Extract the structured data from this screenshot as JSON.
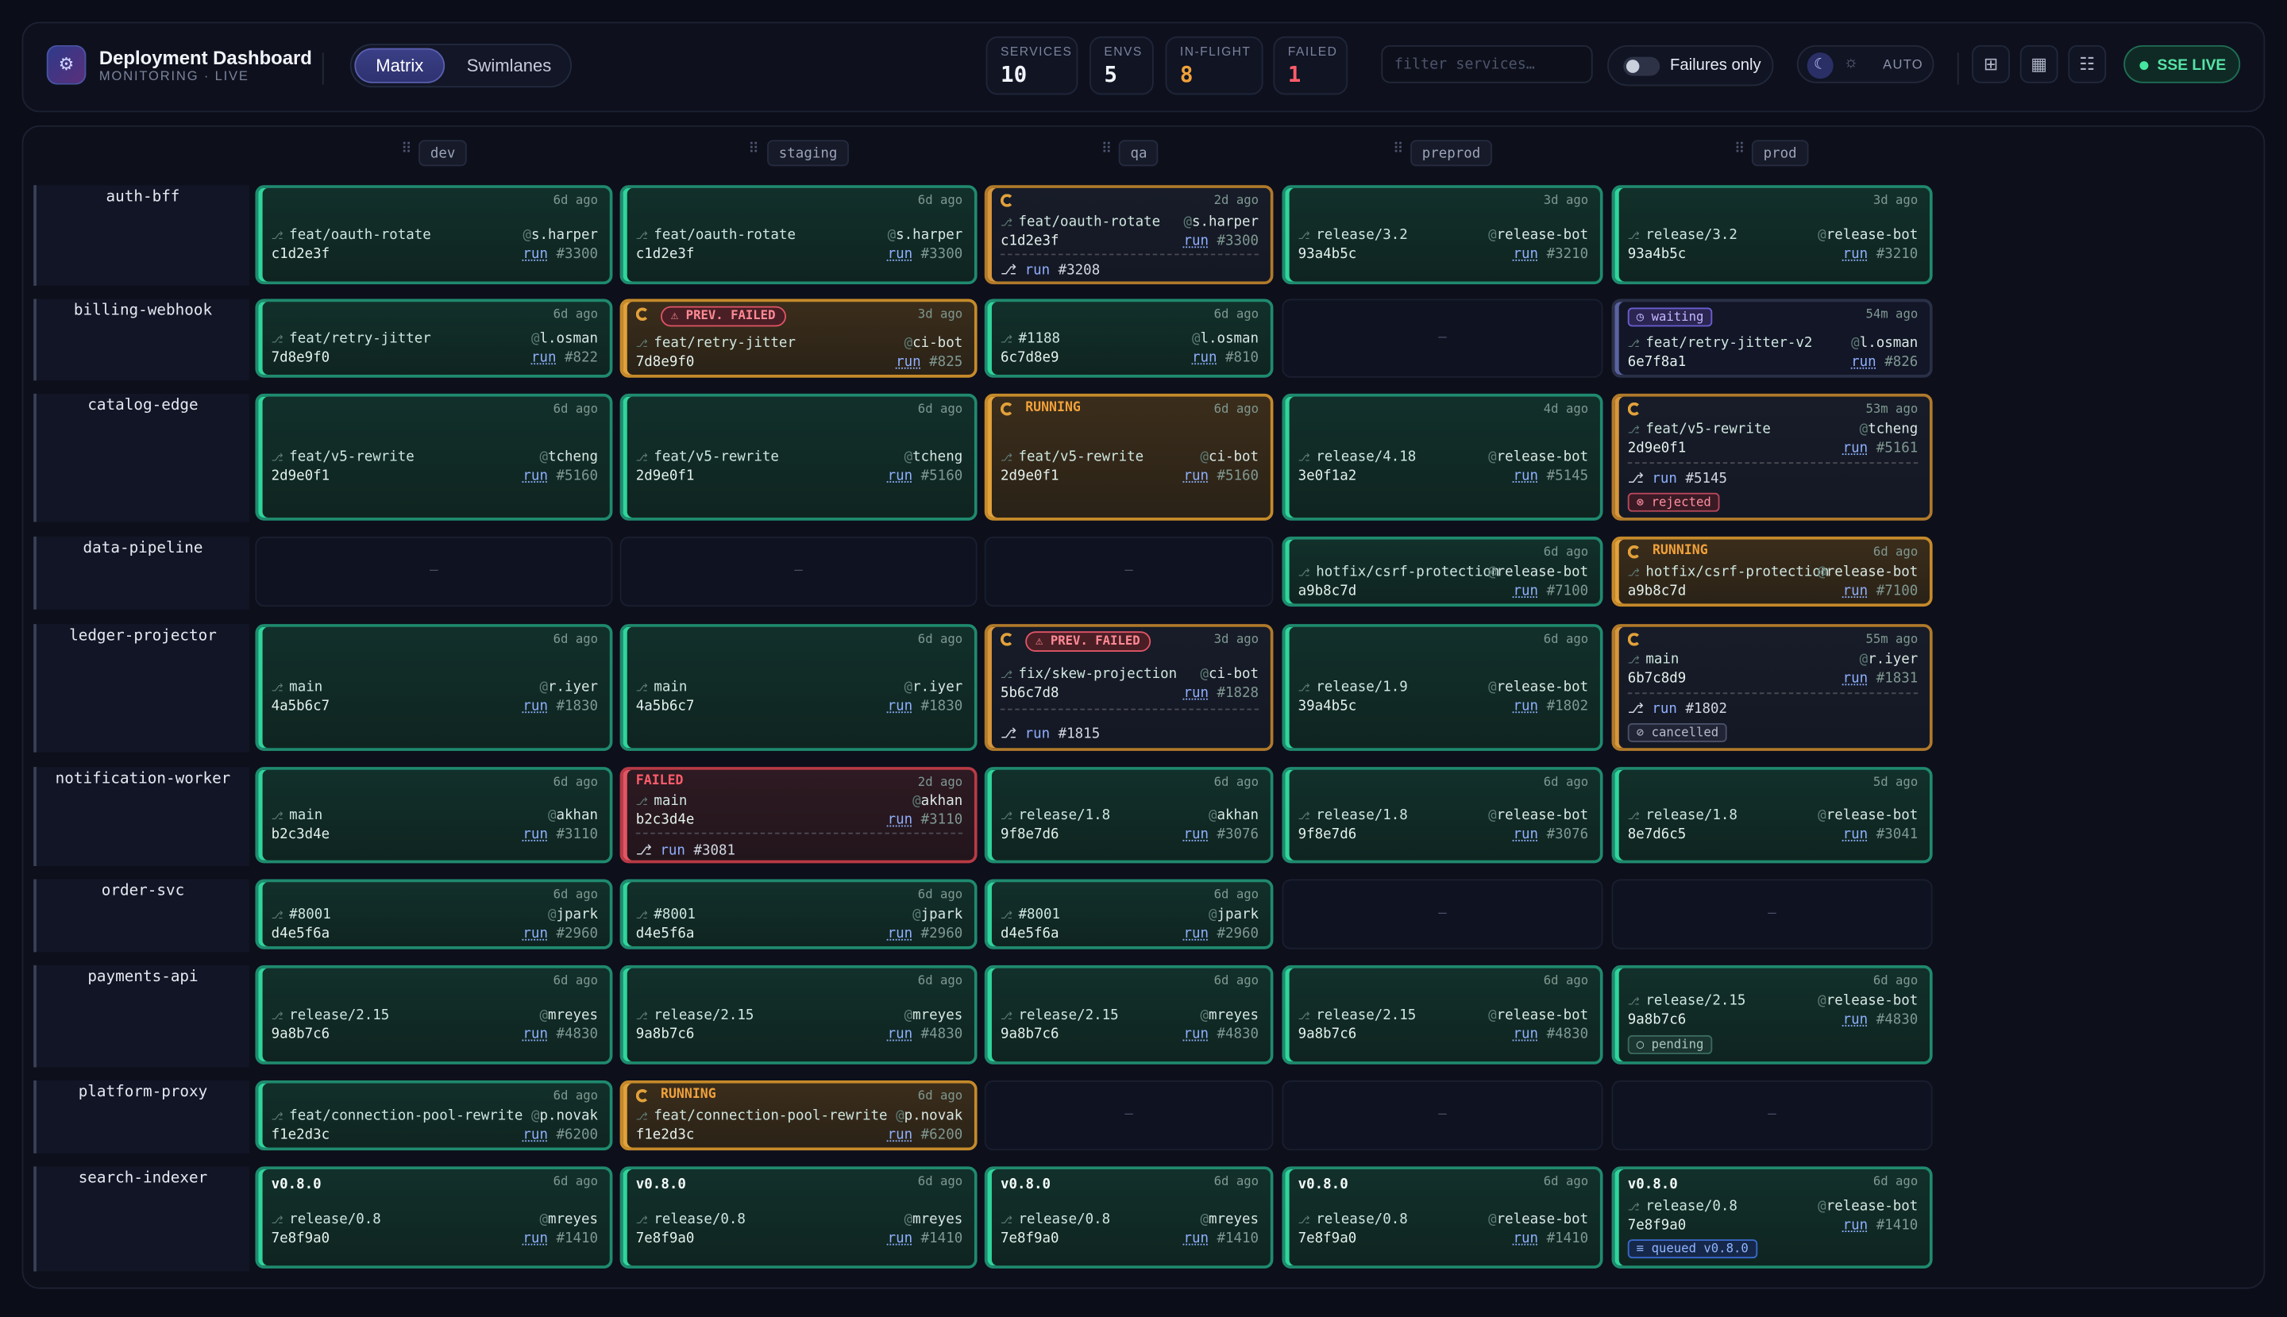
{
  "app": {
    "title": "Deployment Dashboard",
    "subtitle": "MONITORING · LIVE",
    "logo_icon": "deploy-logo-icon"
  },
  "view": {
    "matrix_label": "Matrix",
    "swimlanes_label": "Swimlanes",
    "active": "Matrix"
  },
  "stats": [
    {
      "label": "SERVICES",
      "value": "10",
      "color": "#f1f3fa"
    },
    {
      "label": "ENVS",
      "value": "5",
      "color": "#f1f3fa"
    },
    {
      "label": "IN-FLIGHT",
      "value": "8",
      "color": "#f0a13a"
    },
    {
      "label": "FAILED",
      "value": "1",
      "color": "#ff5c6a"
    }
  ],
  "filter": {
    "placeholder": "filter services…"
  },
  "toggle": {
    "label": "Failures only",
    "on": false
  },
  "theme": {
    "auto_label": "AUTO"
  },
  "live": {
    "label": "SSE LIVE",
    "color": "#46e6a0"
  },
  "environments": [
    "dev",
    "staging",
    "qa",
    "preprod",
    "prod"
  ],
  "services": [
    "auth-bff",
    "billing-webhook",
    "catalog-edge",
    "data-pipeline",
    "ledger-projector",
    "notification-worker",
    "order-svc",
    "payments-api",
    "platform-proxy",
    "search-indexer"
  ],
  "empty_symbol": "—",
  "cells": {
    "auth_dev": {
      "ago": "6d ago",
      "branch": "feat/oauth-rotate",
      "sha": "c1d2e3f",
      "who": "s.harper",
      "run": "run",
      "num": "#3300"
    },
    "auth_staging": {
      "ago": "6d ago",
      "branch": "feat/oauth-rotate",
      "sha": "c1d2e3f",
      "who": "s.harper",
      "run": "run",
      "num": "#3300"
    },
    "auth_qa": {
      "ago": "2d ago",
      "branch": "feat/oauth-rotate",
      "sha": "c1d2e3f",
      "who": "s.harper",
      "run": "run",
      "num": "#3300",
      "prev_run": "run",
      "prev_num": "#3208"
    },
    "auth_preprod": {
      "ago": "3d ago",
      "branch": "release/3.2",
      "sha": "93a4b5c",
      "who": "release-bot",
      "run": "run",
      "num": "#3210"
    },
    "auth_prod": {
      "ago": "3d ago",
      "branch": "release/3.2",
      "sha": "93a4b5c",
      "who": "release-bot",
      "run": "run",
      "num": "#3210"
    },
    "billing_dev": {
      "ago": "6d ago",
      "branch": "feat/retry-jitter",
      "sha": "7d8e9f0",
      "who": "l.osman",
      "run": "run",
      "num": "#822"
    },
    "billing_staging": {
      "ago": "3d ago",
      "badge": "⚠ PREV. FAILED",
      "branch": "feat/retry-jitter",
      "sha": "7d8e9f0",
      "who": "ci-bot",
      "run": "run",
      "num": "#825"
    },
    "billing_qa": {
      "ago": "6d ago",
      "branch": "#1188",
      "sha": "6c7d8e9",
      "who": "l.osman",
      "run": "run",
      "num": "#810"
    },
    "billing_prod": {
      "ago": "54m ago",
      "badge": "◷ waiting",
      "branch": "feat/retry-jitter-v2",
      "sha": "6e7f8a1",
      "who": "l.osman",
      "run": "run",
      "num": "#826"
    },
    "catalog_dev": {
      "ago": "6d ago",
      "branch": "feat/v5-rewrite",
      "sha": "2d9e0f1",
      "who": "tcheng",
      "run": "run",
      "num": "#5160"
    },
    "catalog_staging": {
      "ago": "6d ago",
      "branch": "feat/v5-rewrite",
      "sha": "2d9e0f1",
      "who": "tcheng",
      "run": "run",
      "num": "#5160"
    },
    "catalog_qa": {
      "ago": "6d ago",
      "badge": "RUNNING",
      "branch": "feat/v5-rewrite",
      "sha": "2d9e0f1",
      "who": "ci-bot",
      "run": "run",
      "num": "#5160"
    },
    "catalog_preprod": {
      "ago": "4d ago",
      "branch": "release/4.18",
      "sha": "3e0f1a2",
      "who": "release-bot",
      "run": "run",
      "num": "#5145"
    },
    "catalog_prod": {
      "ago": "53m ago",
      "branch": "feat/v5-rewrite",
      "sha": "2d9e0f1",
      "who": "tcheng",
      "run": "run",
      "num": "#5161",
      "prev_run": "run",
      "prev_num": "#5145",
      "tag": "⊗ rejected"
    },
    "data_preprod": {
      "ago": "6d ago",
      "branch": "hotfix/csrf-protection",
      "sha": "a9b8c7d",
      "who": "release-bot",
      "run": "run",
      "num": "#7100"
    },
    "data_prod": {
      "ago": "6d ago",
      "badge": "RUNNING",
      "branch": "hotfix/csrf-protection",
      "sha": "a9b8c7d",
      "who": "release-bot",
      "run": "run",
      "num": "#7100"
    },
    "ledger_dev": {
      "ago": "6d ago",
      "branch": "main",
      "sha": "4a5b6c7",
      "who": "r.iyer",
      "run": "run",
      "num": "#1830"
    },
    "ledger_staging": {
      "ago": "6d ago",
      "branch": "main",
      "sha": "4a5b6c7",
      "who": "r.iyer",
      "run": "run",
      "num": "#1830"
    },
    "ledger_qa": {
      "ago": "3d ago",
      "badge": "⚠ PREV. FAILED",
      "branch": "fix/skew-projection",
      "sha": "5b6c7d8",
      "who": "ci-bot",
      "run": "run",
      "num": "#1828",
      "prev_run": "run",
      "prev_num": "#1815"
    },
    "ledger_preprod": {
      "ago": "6d ago",
      "branch": "release/1.9",
      "sha": "39a4b5c",
      "who": "release-bot",
      "run": "run",
      "num": "#1802"
    },
    "ledger_prod": {
      "ago": "55m ago",
      "branch": "main",
      "sha": "6b7c8d9",
      "who": "r.iyer",
      "run": "run",
      "num": "#1831",
      "prev_run": "run",
      "prev_num": "#1802",
      "tag": "⊘ cancelled"
    },
    "notif_dev": {
      "ago": "6d ago",
      "branch": "main",
      "sha": "b2c3d4e",
      "who": "akhan",
      "run": "run",
      "num": "#3110"
    },
    "notif_staging": {
      "ago": "2d ago",
      "badge": "FAILED",
      "branch": "main",
      "sha": "b2c3d4e",
      "who": "akhan",
      "run": "run",
      "num": "#3110",
      "prev_run": "run",
      "prev_num": "#3081"
    },
    "notif_qa": {
      "ago": "6d ago",
      "branch": "release/1.8",
      "sha": "9f8e7d6",
      "who": "akhan",
      "run": "run",
      "num": "#3076"
    },
    "notif_preprod": {
      "ago": "6d ago",
      "branch": "release/1.8",
      "sha": "9f8e7d6",
      "who": "release-bot",
      "run": "run",
      "num": "#3076"
    },
    "notif_prod": {
      "ago": "5d ago",
      "branch": "release/1.8",
      "sha": "8e7d6c5",
      "who": "release-bot",
      "run": "run",
      "num": "#3041"
    },
    "order_dev": {
      "ago": "6d ago",
      "branch": "#8001",
      "sha": "d4e5f6a",
      "who": "jpark",
      "run": "run",
      "num": "#2960"
    },
    "order_staging": {
      "ago": "6d ago",
      "branch": "#8001",
      "sha": "d4e5f6a",
      "who": "jpark",
      "run": "run",
      "num": "#2960"
    },
    "order_qa": {
      "ago": "6d ago",
      "branch": "#8001",
      "sha": "d4e5f6a",
      "who": "jpark",
      "run": "run",
      "num": "#2960"
    },
    "pay_dev": {
      "ago": "6d ago",
      "branch": "release/2.15",
      "sha": "9a8b7c6",
      "who": "mreyes",
      "run": "run",
      "num": "#4830"
    },
    "pay_staging": {
      "ago": "6d ago",
      "branch": "release/2.15",
      "sha": "9a8b7c6",
      "who": "mreyes",
      "run": "run",
      "num": "#4830"
    },
    "pay_qa": {
      "ago": "6d ago",
      "branch": "release/2.15",
      "sha": "9a8b7c6",
      "who": "mreyes",
      "run": "run",
      "num": "#4830"
    },
    "pay_preprod": {
      "ago": "6d ago",
      "branch": "release/2.15",
      "sha": "9a8b7c6",
      "who": "release-bot",
      "run": "run",
      "num": "#4830"
    },
    "pay_prod": {
      "ago": "6d ago",
      "branch": "release/2.15",
      "sha": "9a8b7c6",
      "who": "release-bot",
      "run": "run",
      "num": "#4830",
      "tag": "○ pending"
    },
    "proxy_dev": {
      "ago": "6d ago",
      "branch": "feat/connection-pool-rewrite",
      "sha": "f1e2d3c",
      "who": "p.novak",
      "run": "run",
      "num": "#6200"
    },
    "proxy_staging": {
      "ago": "6d ago",
      "badge": "RUNNING",
      "branch": "feat/connection-pool-rewrite",
      "sha": "f1e2d3c",
      "who": "p.novak",
      "run": "run",
      "num": "#6200"
    },
    "search_dev": {
      "ago": "6d ago",
      "version": "v0.8.0",
      "branch": "release/0.8",
      "sha": "7e8f9a0",
      "who": "mreyes",
      "run": "run",
      "num": "#1410"
    },
    "search_staging": {
      "ago": "6d ago",
      "version": "v0.8.0",
      "branch": "release/0.8",
      "sha": "7e8f9a0",
      "who": "mreyes",
      "run": "run",
      "num": "#1410"
    },
    "search_qa": {
      "ago": "6d ago",
      "version": "v0.8.0",
      "branch": "release/0.8",
      "sha": "7e8f9a0",
      "who": "mreyes",
      "run": "run",
      "num": "#1410"
    },
    "search_preprod": {
      "ago": "6d ago",
      "version": "v0.8.0",
      "branch": "release/0.8",
      "sha": "7e8f9a0",
      "who": "release-bot",
      "run": "run",
      "num": "#1410"
    },
    "search_prod": {
      "ago": "6d ago",
      "version": "v0.8.0",
      "branch": "release/0.8",
      "sha": "7e8f9a0",
      "who": "release-bot",
      "run": "run",
      "num": "#1410",
      "tag": "≡ queued v0.8.0"
    }
  }
}
